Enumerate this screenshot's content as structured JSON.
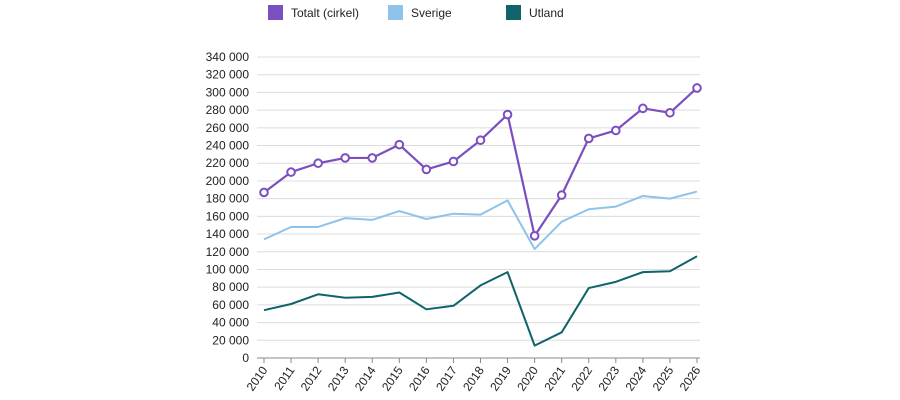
{
  "chart_data": {
    "type": "line",
    "title": "",
    "xlabel": "",
    "ylabel": "",
    "x": [
      "2010",
      "2011",
      "2012",
      "2013",
      "2014",
      "2015",
      "2016",
      "2017",
      "2018",
      "2019",
      "2020",
      "2021",
      "2022",
      "2023",
      "2024",
      "2025",
      "2026"
    ],
    "ylim": [
      0,
      340000
    ],
    "y_tick_labels": [
      "0",
      "20 000",
      "40 000",
      "60 000",
      "80 000",
      "100 000",
      "120 000",
      "140 000",
      "160 000",
      "180 000",
      "200 000",
      "220 000",
      "240 000",
      "260 000",
      "280 000",
      "300 000",
      "320 000",
      "340 000"
    ],
    "y_tick_values": [
      0,
      20000,
      40000,
      60000,
      80000,
      100000,
      120000,
      140000,
      160000,
      180000,
      200000,
      220000,
      240000,
      260000,
      280000,
      300000,
      320000,
      340000
    ],
    "grid": true,
    "legend_position": "top",
    "series": [
      {
        "name": "Totalt (cirkel)",
        "color": "#7b4fbf",
        "markers": "circle",
        "values": [
          187000,
          210000,
          220000,
          226000,
          226000,
          241000,
          213000,
          222000,
          246000,
          275000,
          138000,
          184000,
          248000,
          257000,
          282000,
          277000,
          305000
        ]
      },
      {
        "name": "Sverige",
        "color": "#8fc3e9",
        "markers": "none",
        "values": [
          134000,
          148000,
          148000,
          158000,
          156000,
          166000,
          157000,
          163000,
          162000,
          178000,
          123000,
          154000,
          168000,
          171000,
          183000,
          180000,
          188000
        ]
      },
      {
        "name": "Utland",
        "color": "#0f6369",
        "markers": "none",
        "values": [
          54000,
          61000,
          72000,
          68000,
          69000,
          74000,
          55000,
          59000,
          82000,
          97000,
          14000,
          29000,
          79000,
          86000,
          97000,
          98000,
          115000
        ]
      }
    ]
  }
}
